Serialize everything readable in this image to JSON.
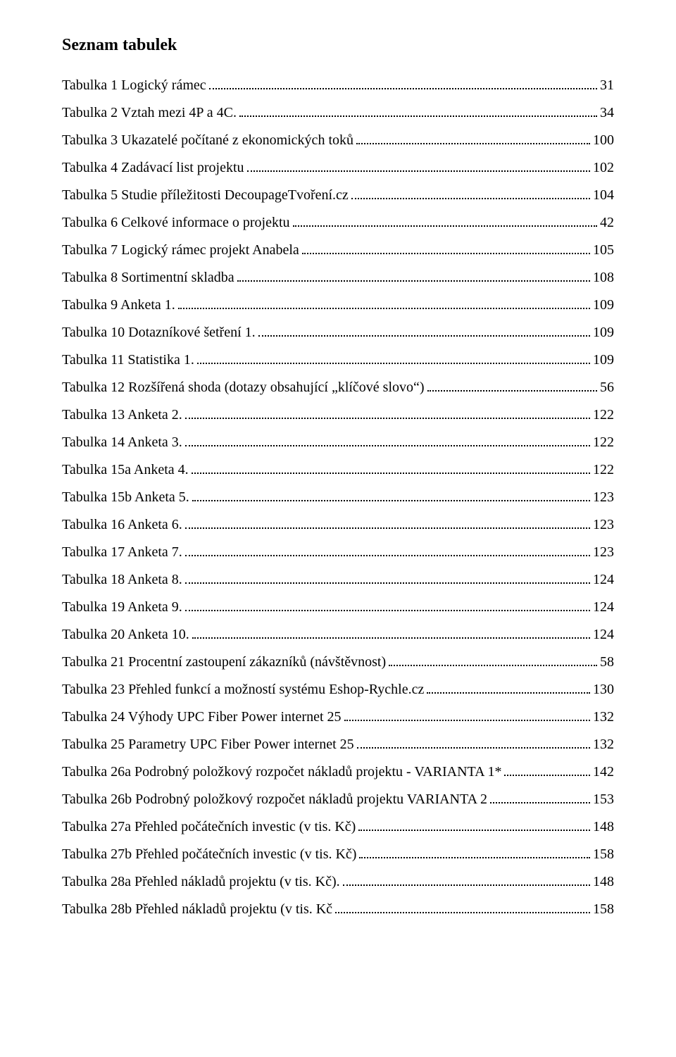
{
  "title": "Seznam tabulek",
  "entries": [
    {
      "label": "Tabulka 1 Logický rámec",
      "page": "31"
    },
    {
      "label": "Tabulka 2 Vztah mezi 4P a 4C.",
      "page": "34"
    },
    {
      "label": "Tabulka 3 Ukazatelé počítané z ekonomických toků",
      "page": "100"
    },
    {
      "label": "Tabulka 4 Zadávací list projektu",
      "page": "102"
    },
    {
      "label": "Tabulka 5 Studie příležitosti DecoupageTvoření.cz",
      "page": "104"
    },
    {
      "label": "Tabulka 6 Celkové informace o projektu",
      "page": "42"
    },
    {
      "label": "Tabulka 7 Logický rámec projekt Anabela",
      "page": "105"
    },
    {
      "label": "Tabulka 8 Sortimentní skladba",
      "page": "108"
    },
    {
      "label": "Tabulka 9 Anketa 1.",
      "page": "109"
    },
    {
      "label": "Tabulka 10 Dotazníkové šetření 1.",
      "page": "109"
    },
    {
      "label": "Tabulka 11 Statistika 1.",
      "page": "109"
    },
    {
      "label": "Tabulka 12 Rozšířená shoda (dotazy obsahující „klíčové slovo“)",
      "page": "56"
    },
    {
      "label": "Tabulka 13 Anketa 2.",
      "page": "122"
    },
    {
      "label": "Tabulka 14 Anketa 3.",
      "page": "122"
    },
    {
      "label": "Tabulka 15a Anketa 4.",
      "page": "122"
    },
    {
      "label": "Tabulka 15b Anketa 5.",
      "page": "123"
    },
    {
      "label": "Tabulka 16 Anketa 6.",
      "page": "123"
    },
    {
      "label": "Tabulka 17 Anketa 7.",
      "page": "123"
    },
    {
      "label": "Tabulka 18 Anketa 8.",
      "page": "124"
    },
    {
      "label": "Tabulka 19 Anketa 9.",
      "page": "124"
    },
    {
      "label": "Tabulka 20 Anketa 10.",
      "page": "124"
    },
    {
      "label": "Tabulka 21 Procentní zastoupení zákazníků (návštěvnost)",
      "page": "58"
    },
    {
      "label": "Tabulka 23 Přehled funkcí a možností systému Eshop-Rychle.cz",
      "page": "130"
    },
    {
      "label": "Tabulka 24 Výhody UPC Fiber Power internet 25",
      "page": "132"
    },
    {
      "label": "Tabulka 25 Parametry UPC Fiber Power internet 25",
      "page": "132"
    },
    {
      "label": "Tabulka 26a Podrobný položkový rozpočet nákladů projektu - VARIANTA 1*",
      "page": "142"
    },
    {
      "label": "Tabulka 26b Podrobný položkový rozpočet nákladů projektu VARIANTA 2",
      "page": "153"
    },
    {
      "label": "Tabulka 27a Přehled počátečních investic (v tis. Kč)",
      "page": "148"
    },
    {
      "label": "Tabulka 27b Přehled počátečních investic (v tis. Kč)",
      "page": "158"
    },
    {
      "label": "Tabulka 28a Přehled nákladů projektu (v tis. Kč).",
      "page": "148"
    },
    {
      "label": "Tabulka 28b Přehled nákladů projektu (v tis. Kč",
      "page": "158"
    }
  ]
}
